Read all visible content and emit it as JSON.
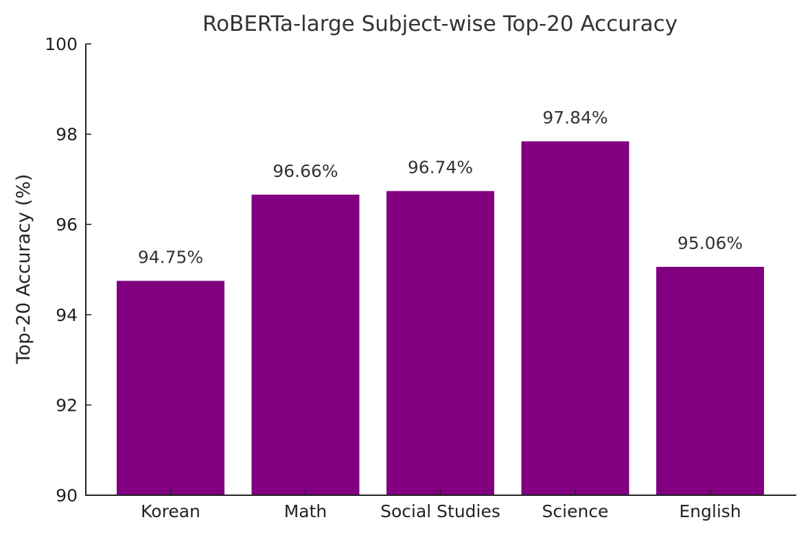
{
  "chart_data": {
    "type": "bar",
    "title": "RoBERTa-large Subject-wise Top-20 Accuracy",
    "xlabel": "",
    "ylabel": "Top-20 Accuracy (%)",
    "categories": [
      "Korean",
      "Math",
      "Social Studies",
      "Science",
      "English"
    ],
    "values": [
      94.75,
      96.66,
      96.74,
      97.84,
      95.06
    ],
    "value_labels": [
      "94.75%",
      "96.66%",
      "96.74%",
      "97.84%",
      "95.06%"
    ],
    "ylim": [
      90,
      100
    ],
    "yticks": [
      90,
      92,
      94,
      96,
      98,
      100
    ],
    "ytick_labels": [
      "90",
      "92",
      "94",
      "96",
      "98",
      "100"
    ],
    "bar_color": "#800080",
    "grid": false,
    "legend": "none"
  }
}
